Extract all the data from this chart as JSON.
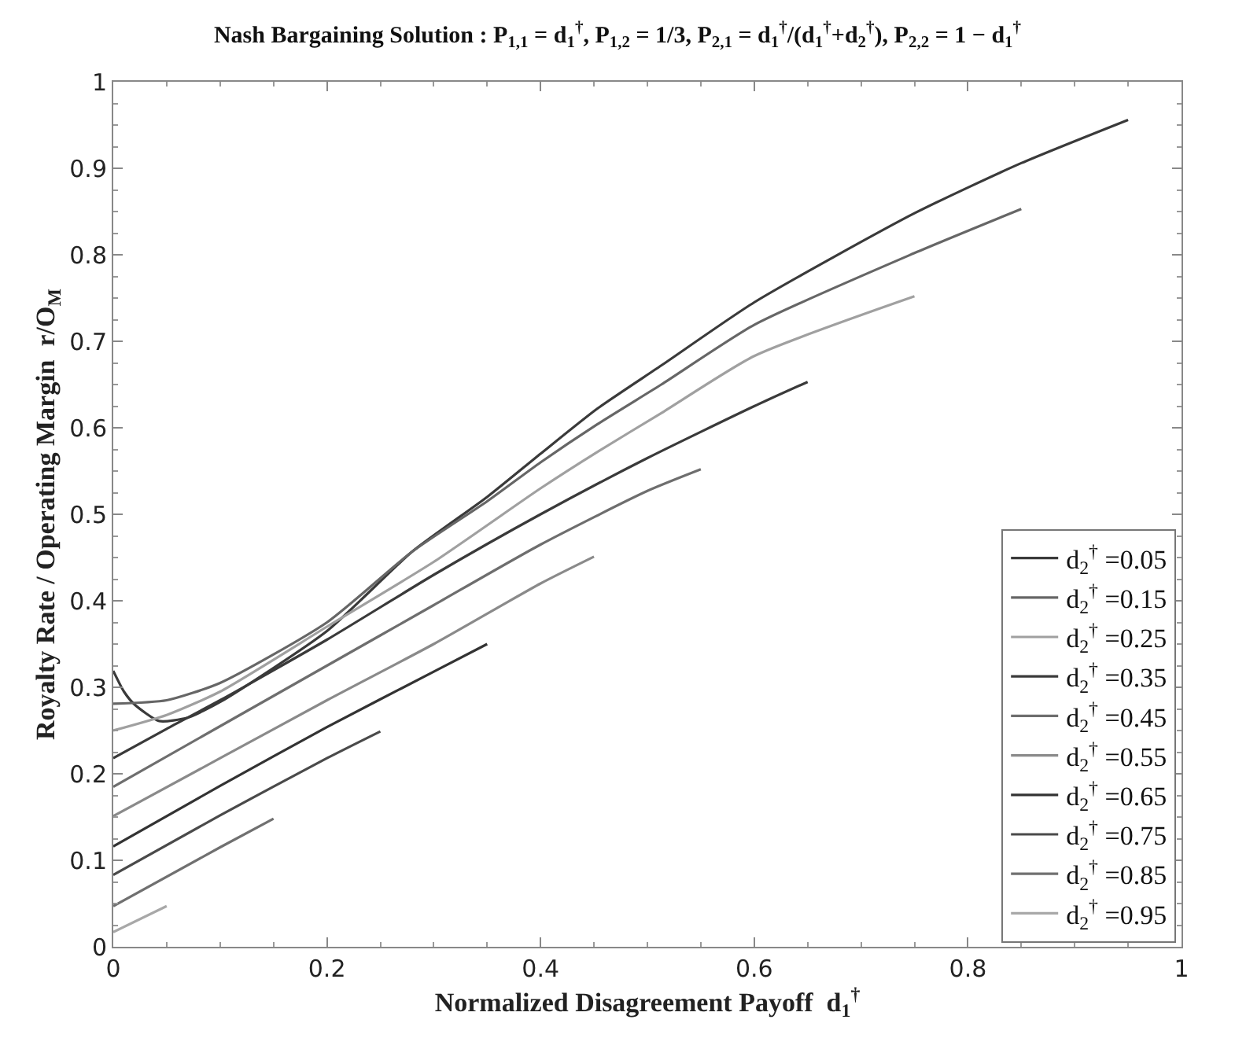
{
  "chart_data": {
    "type": "line",
    "title": "Nash Bargaining Solution : P$_{1,1}$ = d$_{1}$$^{†}$, P$_{1,2}$ = 1/3, P$_{2,1}$ = d$_{1}$$^{†}$/(d$_{1}$$^{†}$+d$_{2}$$^{†}$), P$_{2,2}$ = 1 − d$_{1}$$^{†}$",
    "xlabel": "Normalized Disagreement Payoff  d$_{1}$$^{†}$",
    "ylabel": "Royalty Rate / Operating Margin  r/O$_{M}$",
    "xlim": [
      0,
      1
    ],
    "ylim": [
      0,
      1
    ],
    "xticks": [
      0,
      {
        "value": 0.2,
        "label": "0.2"
      },
      {
        "value": 0.4,
        "label": "0.4"
      },
      {
        "value": 0.6,
        "label": "0.6"
      },
      {
        "value": 0.8,
        "label": "0.8"
      },
      1
    ],
    "yticks": [
      0,
      {
        "value": 0.1,
        "label": "0.1"
      },
      {
        "value": 0.2,
        "label": "0.2"
      },
      {
        "value": 0.3,
        "label": "0.3"
      },
      {
        "value": 0.4,
        "label": "0.4"
      },
      {
        "value": 0.5,
        "label": "0.5"
      },
      {
        "value": 0.6,
        "label": "0.6"
      },
      {
        "value": 0.7,
        "label": "0.7"
      },
      {
        "value": 0.8,
        "label": "0.8"
      },
      {
        "value": 0.9,
        "label": "0.9"
      },
      1
    ],
    "legend": "bottom right",
    "marker": "none",
    "line_style": "solid",
    "series": [
      {
        "name": "d$_{2}$$^{†}$ =0.05",
        "color": "#3a3a3a",
        "x": [
          0,
          0.01,
          0.02,
          0.043,
          0.07,
          0.1,
          0.2,
          0.28,
          0.35,
          0.4,
          0.453,
          0.513,
          0.6,
          0.75,
          0.85,
          0.95
        ],
        "values": [
          0.319,
          0.295,
          0.28,
          0.261,
          0.265,
          0.283,
          0.365,
          0.457,
          0.52,
          0.57,
          0.622,
          0.672,
          0.745,
          0.848,
          0.906,
          0.956
        ]
      },
      {
        "name": "d$_{2}$$^{†}$ =0.15",
        "color": "#666666",
        "x": [
          0,
          0.05,
          0.1,
          0.2,
          0.28,
          0.35,
          0.4,
          0.453,
          0.513,
          0.6,
          0.75,
          0.85
        ],
        "values": [
          0.281,
          0.285,
          0.305,
          0.375,
          0.457,
          0.515,
          0.56,
          0.604,
          0.65,
          0.719,
          0.802,
          0.853
        ]
      },
      {
        "name": "d$_{2}$$^{†}$ =0.25",
        "color": "#a0a0a0",
        "x": [
          0,
          0.05,
          0.1,
          0.2,
          0.3,
          0.4,
          0.453,
          0.513,
          0.6,
          0.75
        ],
        "values": [
          0.25,
          0.268,
          0.295,
          0.37,
          0.445,
          0.53,
          0.572,
          0.617,
          0.683,
          0.752
        ]
      },
      {
        "name": "d$_{2}$$^{†}$ =0.35",
        "color": "#3a3a3a",
        "x": [
          0,
          0.05,
          0.1,
          0.2,
          0.3,
          0.4,
          0.5,
          0.6,
          0.65
        ],
        "values": [
          0.218,
          0.252,
          0.285,
          0.355,
          0.43,
          0.5,
          0.565,
          0.625,
          0.653
        ]
      },
      {
        "name": "d$_{2}$$^{†}$ =0.45",
        "color": "#6e6e6e",
        "x": [
          0,
          0.1,
          0.2,
          0.3,
          0.4,
          0.5,
          0.55
        ],
        "values": [
          0.185,
          0.255,
          0.325,
          0.395,
          0.465,
          0.527,
          0.552
        ]
      },
      {
        "name": "d$_{2}$$^{†}$ =0.55",
        "color": "#8a8a8a",
        "x": [
          0,
          0.1,
          0.2,
          0.3,
          0.4,
          0.45
        ],
        "values": [
          0.151,
          0.218,
          0.285,
          0.35,
          0.42,
          0.451
        ]
      },
      {
        "name": "d$_{2}$$^{†}$ =0.65",
        "color": "#333333",
        "x": [
          0,
          0.1,
          0.2,
          0.3,
          0.35
        ],
        "values": [
          0.116,
          0.186,
          0.254,
          0.318,
          0.35
        ]
      },
      {
        "name": "d$_{2}$$^{†}$ =0.75",
        "color": "#4a4a4a",
        "x": [
          0,
          0.1,
          0.2,
          0.25
        ],
        "values": [
          0.083,
          0.152,
          0.218,
          0.249
        ]
      },
      {
        "name": "d$_{2}$$^{†}$ =0.85",
        "color": "#707070",
        "x": [
          0,
          0.1,
          0.15
        ],
        "values": [
          0.047,
          0.115,
          0.148
        ]
      },
      {
        "name": "d$_{2}$$^{†}$ =0.95",
        "color": "#a8a8a8",
        "x": [
          0,
          0.05
        ],
        "values": [
          0.017,
          0.047
        ]
      }
    ]
  }
}
